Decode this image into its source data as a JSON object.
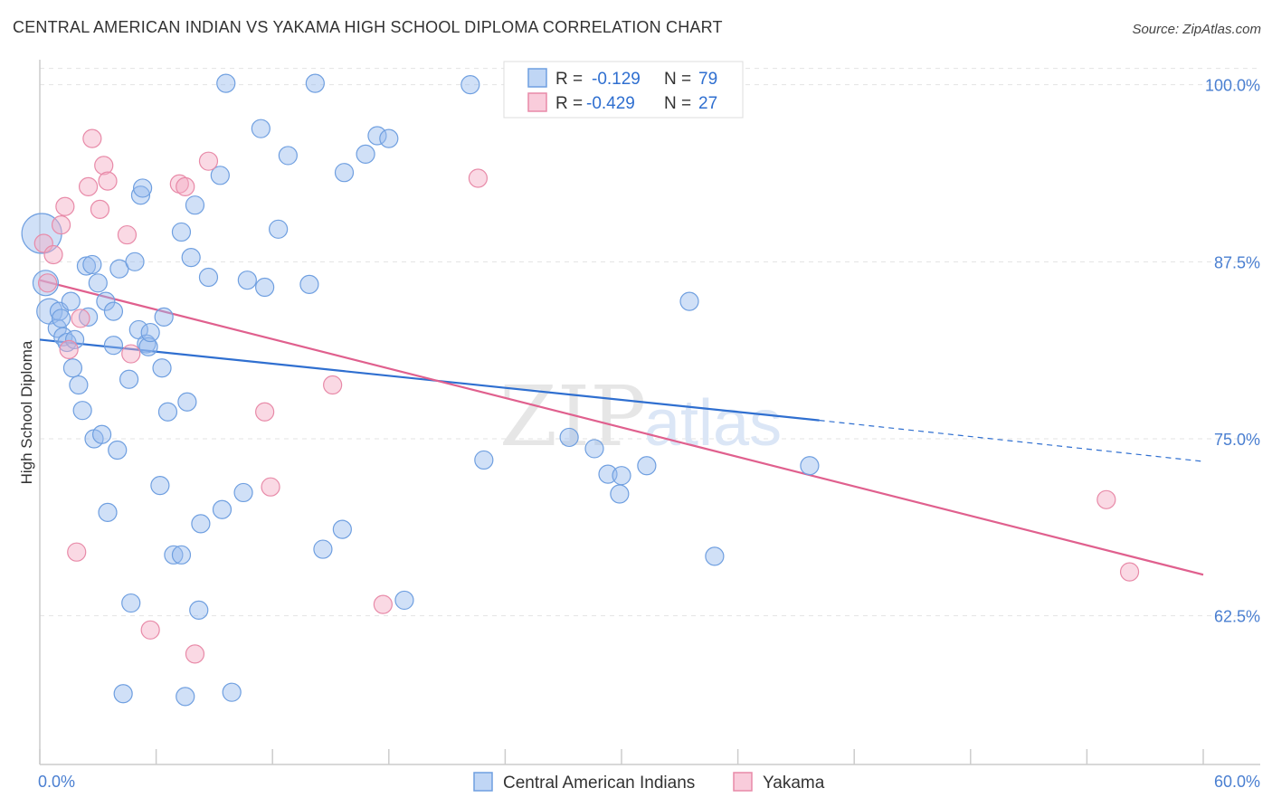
{
  "header": {
    "title": "CENTRAL AMERICAN INDIAN VS YAKAMA HIGH SCHOOL DIPLOMA CORRELATION CHART",
    "source": "Source: ZipAtlas.com"
  },
  "watermark": {
    "zip": "ZIP",
    "atlas": "atlas"
  },
  "colors": {
    "blue": "#6f9fe0",
    "blue_fill": "rgba(150,186,238,0.45)",
    "blue_line": "#2f6fd0",
    "pink": "#e88aa8",
    "pink_fill": "rgba(245,170,195,0.45)",
    "pink_line": "#e0608e",
    "tick": "#4a7fd1"
  },
  "chart_data": {
    "type": "scatter",
    "title": "CENTRAL AMERICAN INDIAN VS YAKAMA HIGH SCHOOL DIPLOMA CORRELATION CHART",
    "xlabel": "",
    "ylabel": "High School Diploma",
    "xlim": [
      0,
      60
    ],
    "ylim": [
      52,
      101
    ],
    "x_tick_labels": [
      {
        "value": 0,
        "label": "0.0%"
      },
      {
        "value": 60,
        "label": "60.0%"
      }
    ],
    "y_ticks": [
      {
        "value": 100,
        "label": "100.0%"
      },
      {
        "value": 87.5,
        "label": "87.5%"
      },
      {
        "value": 75,
        "label": "75.0%"
      },
      {
        "value": 62.5,
        "label": "62.5%"
      }
    ],
    "grid": true,
    "legend_position": "top-center",
    "stats": [
      {
        "series": "Central American Indians",
        "r_label": "R =",
        "r": "-0.129",
        "n_label": "N =",
        "n": "79"
      },
      {
        "series": "Yakama",
        "r_label": "R =",
        "r": "-0.429",
        "n_label": "N =",
        "n": "27"
      }
    ],
    "series": [
      {
        "name": "Central American Indians",
        "color": "blue",
        "trend": {
          "x0": 0,
          "y0": 82.0,
          "x1": 40.2,
          "y1": 76.3,
          "dash_to_x": 60,
          "dash_to_y": 73.4
        },
        "points": [
          [
            0.1,
            89.5,
            22
          ],
          [
            0.3,
            86.0,
            14
          ],
          [
            0.5,
            84.0,
            14
          ],
          [
            0.9,
            82.8,
            10
          ],
          [
            1.0,
            84.0,
            10
          ],
          [
            1.1,
            83.5,
            10
          ],
          [
            1.2,
            82.2,
            10
          ],
          [
            1.4,
            81.8,
            10
          ],
          [
            1.6,
            84.7,
            10
          ],
          [
            1.7,
            80.0,
            10
          ],
          [
            1.8,
            82.0,
            10
          ],
          [
            2.0,
            78.8,
            10
          ],
          [
            2.2,
            77.0,
            10
          ],
          [
            2.4,
            87.2,
            10
          ],
          [
            2.5,
            83.6,
            10
          ],
          [
            2.7,
            87.3,
            10
          ],
          [
            2.8,
            75.0,
            10
          ],
          [
            3.0,
            86.0,
            10
          ],
          [
            3.2,
            75.3,
            10
          ],
          [
            3.4,
            84.7,
            10
          ],
          [
            3.5,
            69.8,
            10
          ],
          [
            3.8,
            81.6,
            10
          ],
          [
            3.8,
            84.0,
            10
          ],
          [
            4.0,
            74.2,
            10
          ],
          [
            4.1,
            87.0,
            10
          ],
          [
            4.3,
            57.0,
            10
          ],
          [
            4.6,
            79.2,
            10
          ],
          [
            4.7,
            63.4,
            10
          ],
          [
            4.9,
            87.5,
            10
          ],
          [
            5.1,
            82.7,
            10
          ],
          [
            5.2,
            92.2,
            10
          ],
          [
            5.3,
            92.7,
            10
          ],
          [
            5.5,
            81.7,
            10
          ],
          [
            5.6,
            81.5,
            10
          ],
          [
            5.7,
            82.5,
            10
          ],
          [
            6.2,
            71.7,
            10
          ],
          [
            6.3,
            80.0,
            10
          ],
          [
            6.4,
            83.6,
            10
          ],
          [
            6.6,
            76.9,
            10
          ],
          [
            6.9,
            66.8,
            10
          ],
          [
            7.3,
            66.8,
            10
          ],
          [
            7.3,
            89.6,
            10
          ],
          [
            7.5,
            56.8,
            10
          ],
          [
            7.6,
            77.6,
            10
          ],
          [
            7.8,
            87.8,
            10
          ],
          [
            8.0,
            91.5,
            10
          ],
          [
            8.2,
            62.9,
            10
          ],
          [
            8.3,
            69.0,
            10
          ],
          [
            8.7,
            86.4,
            10
          ],
          [
            9.3,
            93.6,
            10
          ],
          [
            9.4,
            70.0,
            10
          ],
          [
            9.6,
            100.1,
            10
          ],
          [
            9.9,
            57.1,
            10
          ],
          [
            10.5,
            71.2,
            10
          ],
          [
            10.7,
            86.2,
            10
          ],
          [
            11.4,
            96.9,
            10
          ],
          [
            11.6,
            85.7,
            10
          ],
          [
            12.3,
            89.8,
            10
          ],
          [
            12.8,
            95.0,
            10
          ],
          [
            13.9,
            85.9,
            10
          ],
          [
            14.2,
            100.1,
            10
          ],
          [
            14.6,
            67.2,
            10
          ],
          [
            15.6,
            68.6,
            10
          ],
          [
            15.7,
            93.8,
            10
          ],
          [
            16.8,
            95.1,
            10
          ],
          [
            17.4,
            96.4,
            10
          ],
          [
            18.0,
            96.2,
            10
          ],
          [
            18.8,
            63.6,
            10
          ],
          [
            22.2,
            100.0,
            10
          ],
          [
            22.9,
            73.5,
            10
          ],
          [
            27.3,
            75.1,
            10
          ],
          [
            28.6,
            74.3,
            10
          ],
          [
            29.3,
            72.5,
            10
          ],
          [
            29.9,
            71.1,
            10
          ],
          [
            30.0,
            72.4,
            10
          ],
          [
            31.3,
            73.1,
            10
          ],
          [
            33.5,
            84.7,
            10
          ],
          [
            34.8,
            66.7,
            10
          ],
          [
            39.7,
            73.1,
            10
          ]
        ]
      },
      {
        "name": "Yakama",
        "color": "pink",
        "trend": {
          "x0": 0,
          "y0": 86.2,
          "x1": 60,
          "y1": 65.4
        },
        "points": [
          [
            0.2,
            88.8,
            10
          ],
          [
            0.4,
            86.0,
            10
          ],
          [
            0.7,
            88.0,
            10
          ],
          [
            1.1,
            90.1,
            10
          ],
          [
            1.3,
            91.4,
            10
          ],
          [
            1.5,
            81.3,
            10
          ],
          [
            1.9,
            67.0,
            10
          ],
          [
            2.1,
            83.5,
            10
          ],
          [
            2.5,
            92.8,
            10
          ],
          [
            2.7,
            96.2,
            10
          ],
          [
            3.1,
            91.2,
            10
          ],
          [
            3.3,
            94.3,
            10
          ],
          [
            3.5,
            93.2,
            10
          ],
          [
            4.5,
            89.4,
            10
          ],
          [
            4.7,
            81.0,
            10
          ],
          [
            5.7,
            61.5,
            10
          ],
          [
            7.2,
            93.0,
            10
          ],
          [
            7.5,
            92.8,
            10
          ],
          [
            8.0,
            59.8,
            10
          ],
          [
            8.7,
            94.6,
            10
          ],
          [
            11.6,
            76.9,
            10
          ],
          [
            11.9,
            71.6,
            10
          ],
          [
            15.1,
            78.8,
            10
          ],
          [
            17.7,
            63.3,
            10
          ],
          [
            22.6,
            93.4,
            10
          ],
          [
            55.0,
            70.7,
            10
          ],
          [
            56.2,
            65.6,
            10
          ]
        ]
      }
    ]
  }
}
